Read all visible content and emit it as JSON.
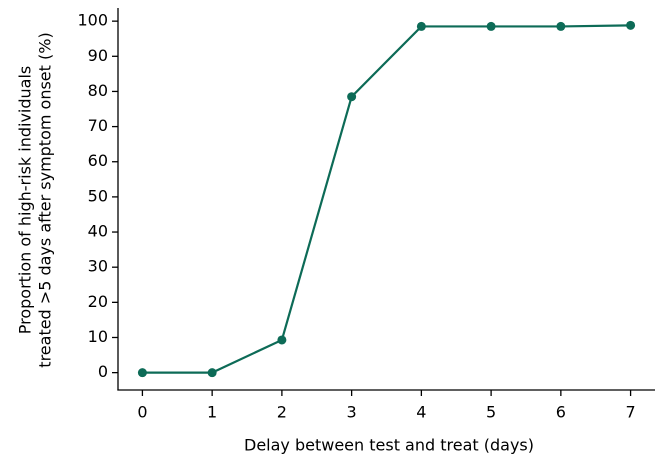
{
  "chart_data": {
    "type": "line",
    "xlabel": "Delay between test and treat (days)",
    "ylabel": [
      "Proportion of high-risk individuals",
      "treated >5 days after symptom onset (%)"
    ],
    "x": [
      0,
      1,
      2,
      3,
      4,
      5,
      6,
      7
    ],
    "series": [
      {
        "color": "#0d6b57",
        "values": [
          0,
          0,
          9.3,
          78.5,
          98.5,
          98.5,
          98.5,
          98.8
        ]
      }
    ],
    "xlim": [
      -0.35,
      7.35
    ],
    "ylim": [
      -4.94,
      103.74
    ],
    "xticks": [
      0,
      1,
      2,
      3,
      4,
      5,
      6,
      7
    ],
    "yticks": [
      0,
      10,
      20,
      30,
      40,
      50,
      60,
      70,
      80,
      90,
      100
    ]
  }
}
